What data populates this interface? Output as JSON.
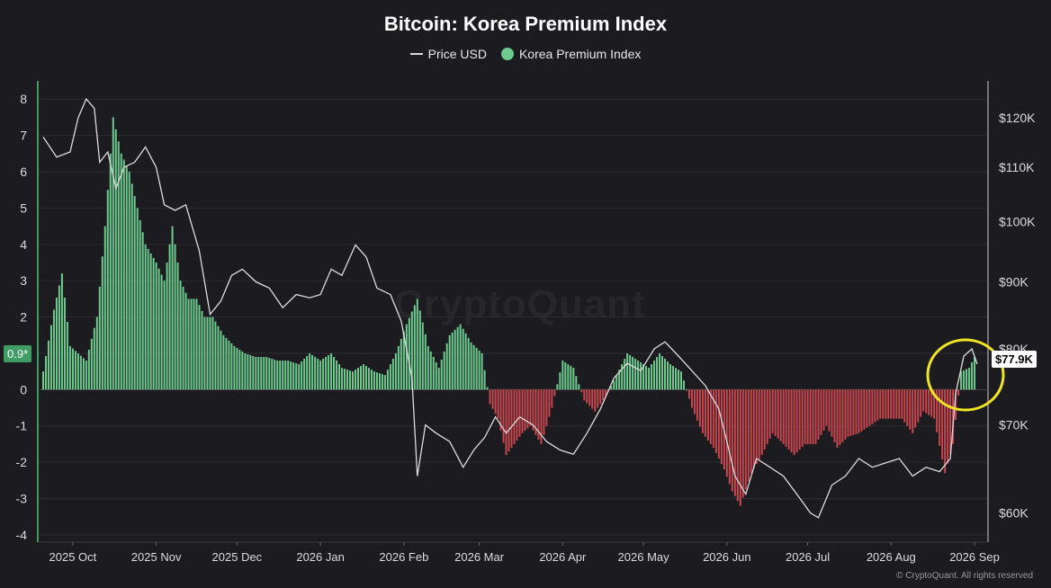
{
  "chart_data": {
    "type": "bar",
    "title": "Bitcoin: Korea Premium Index",
    "legend": [
      "Price USD",
      "Korea Premium Index"
    ],
    "legend_placement": "top-center",
    "grid": true,
    "x_tick_labels": [
      "2025 Oct",
      "2025 Nov",
      "2025 Dec",
      "2026 Jan",
      "2026 Feb",
      "2026 Mar",
      "2026 Apr",
      "2026 May",
      "2026 Jun",
      "2026 Jul",
      "2026 Aug",
      "2026 Sep"
    ],
    "y_left_ticks": [
      8,
      7,
      6,
      5,
      4,
      3,
      2,
      1,
      0,
      -1,
      -2,
      -3,
      -4
    ],
    "y_left_range": [
      -4.2,
      8.5
    ],
    "y_right_ticks": [
      "$120K",
      "$110K",
      "$100K",
      "$90K",
      "$80K",
      "$70K",
      "$60K"
    ],
    "y_right_values": [
      120000,
      110000,
      100000,
      90000,
      80000,
      70000,
      60000
    ],
    "y_right_range": [
      57000,
      128000
    ],
    "y_right_scale": "log",
    "last_premium_label": "0.9*",
    "last_price_label": "$77.9K",
    "premium_series": {
      "name": "Korea Premium Index",
      "positive_color": "#6ecb8e",
      "negative_color": "#c9474e",
      "points": [
        [
          "2025-09-20",
          0.5
        ],
        [
          "2025-09-24",
          2.2
        ],
        [
          "2025-09-27",
          3.2
        ],
        [
          "2025-09-30",
          1.2
        ],
        [
          "2025-10-03",
          1.0
        ],
        [
          "2025-10-06",
          0.8
        ],
        [
          "2025-10-10",
          2.0
        ],
        [
          "2025-10-13",
          4.5
        ],
        [
          "2025-10-16",
          7.5
        ],
        [
          "2025-10-19",
          6.5
        ],
        [
          "2025-10-22",
          6.0
        ],
        [
          "2025-10-25",
          5.0
        ],
        [
          "2025-10-28",
          4.0
        ],
        [
          "2025-11-01",
          3.5
        ],
        [
          "2025-11-04",
          3.0
        ],
        [
          "2025-11-07",
          4.5
        ],
        [
          "2025-11-10",
          3.0
        ],
        [
          "2025-11-13",
          2.5
        ],
        [
          "2025-11-16",
          2.5
        ],
        [
          "2025-11-19",
          2.0
        ],
        [
          "2025-11-22",
          2.0
        ],
        [
          "2025-11-26",
          1.5
        ],
        [
          "2025-11-30",
          1.2
        ],
        [
          "2025-12-04",
          1.0
        ],
        [
          "2025-12-08",
          0.9
        ],
        [
          "2025-12-12",
          0.9
        ],
        [
          "2025-12-16",
          0.8
        ],
        [
          "2025-12-20",
          0.8
        ],
        [
          "2025-12-24",
          0.7
        ],
        [
          "2025-12-28",
          1.0
        ],
        [
          "2026-01-01",
          0.8
        ],
        [
          "2026-01-05",
          1.0
        ],
        [
          "2026-01-09",
          0.6
        ],
        [
          "2026-01-13",
          0.5
        ],
        [
          "2026-01-17",
          0.7
        ],
        [
          "2026-01-21",
          0.5
        ],
        [
          "2026-01-25",
          0.4
        ],
        [
          "2026-01-29",
          1.0
        ],
        [
          "2026-02-02",
          1.8
        ],
        [
          "2026-02-06",
          2.5
        ],
        [
          "2026-02-10",
          1.2
        ],
        [
          "2026-02-14",
          0.6
        ],
        [
          "2026-02-18",
          1.5
        ],
        [
          "2026-02-22",
          1.8
        ],
        [
          "2026-02-26",
          1.3
        ],
        [
          "2026-03-02",
          1.0
        ],
        [
          "2026-03-05",
          -0.4
        ],
        [
          "2026-03-08",
          -0.8
        ],
        [
          "2026-03-11",
          -1.8
        ],
        [
          "2026-03-14",
          -1.5
        ],
        [
          "2026-03-17",
          -1.2
        ],
        [
          "2026-03-20",
          -1.0
        ],
        [
          "2026-03-24",
          -1.5
        ],
        [
          "2026-03-28",
          -0.5
        ],
        [
          "2026-04-01",
          0.8
        ],
        [
          "2026-04-05",
          0.6
        ],
        [
          "2026-04-09",
          -0.3
        ],
        [
          "2026-04-13",
          -0.6
        ],
        [
          "2026-04-17",
          -0.2
        ],
        [
          "2026-04-21",
          0.4
        ],
        [
          "2026-04-25",
          1.0
        ],
        [
          "2026-04-29",
          0.8
        ],
        [
          "2026-05-03",
          0.6
        ],
        [
          "2026-05-07",
          1.0
        ],
        [
          "2026-05-11",
          0.7
        ],
        [
          "2026-05-15",
          0.5
        ],
        [
          "2026-05-19",
          -0.5
        ],
        [
          "2026-05-23",
          -1.2
        ],
        [
          "2026-05-27",
          -1.6
        ],
        [
          "2026-05-31",
          -2.2
        ],
        [
          "2026-06-03",
          -2.8
        ],
        [
          "2026-06-06",
          -3.2
        ],
        [
          "2026-06-10",
          -2.3
        ],
        [
          "2026-06-14",
          -1.8
        ],
        [
          "2026-06-18",
          -1.2
        ],
        [
          "2026-06-22",
          -1.5
        ],
        [
          "2026-06-26",
          -1.8
        ],
        [
          "2026-06-30",
          -1.5
        ],
        [
          "2026-07-04",
          -1.5
        ],
        [
          "2026-07-08",
          -1.0
        ],
        [
          "2026-07-12",
          -1.6
        ],
        [
          "2026-07-16",
          -1.3
        ],
        [
          "2026-07-20",
          -1.2
        ],
        [
          "2026-07-24",
          -1.0
        ],
        [
          "2026-07-28",
          -0.8
        ],
        [
          "2026-08-01",
          -0.8
        ],
        [
          "2026-08-05",
          -0.8
        ],
        [
          "2026-08-09",
          -1.2
        ],
        [
          "2026-08-13",
          -0.6
        ],
        [
          "2026-08-17",
          -0.8
        ],
        [
          "2026-08-21",
          -2.3
        ],
        [
          "2026-08-24",
          -1.5
        ],
        [
          "2026-08-27",
          0.5
        ],
        [
          "2026-08-30",
          0.6
        ],
        [
          "2026-09-01",
          0.9
        ]
      ]
    },
    "price_series": {
      "name": "Price USD",
      "color": "#dddddd",
      "points": [
        [
          "2025-09-20",
          116000
        ],
        [
          "2025-09-25",
          112000
        ],
        [
          "2025-09-30",
          113000
        ],
        [
          "2025-10-03",
          120000
        ],
        [
          "2025-10-06",
          124000
        ],
        [
          "2025-10-09",
          122000
        ],
        [
          "2025-10-11",
          111000
        ],
        [
          "2025-10-14",
          113000
        ],
        [
          "2025-10-17",
          106000
        ],
        [
          "2025-10-20",
          110000
        ],
        [
          "2025-10-24",
          111000
        ],
        [
          "2025-10-28",
          114000
        ],
        [
          "2025-11-01",
          110000
        ],
        [
          "2025-11-04",
          103000
        ],
        [
          "2025-11-08",
          102000
        ],
        [
          "2025-11-12",
          103000
        ],
        [
          "2025-11-17",
          95000
        ],
        [
          "2025-11-21",
          85000
        ],
        [
          "2025-11-25",
          87000
        ],
        [
          "2025-11-29",
          91000
        ],
        [
          "2025-12-03",
          92000
        ],
        [
          "2025-12-08",
          90000
        ],
        [
          "2025-12-13",
          89000
        ],
        [
          "2025-12-18",
          86000
        ],
        [
          "2025-12-23",
          88000
        ],
        [
          "2025-12-28",
          87500
        ],
        [
          "2026-01-01",
          88000
        ],
        [
          "2026-01-05",
          92000
        ],
        [
          "2026-01-09",
          91000
        ],
        [
          "2026-01-14",
          96000
        ],
        [
          "2026-01-18",
          94000
        ],
        [
          "2026-01-22",
          89000
        ],
        [
          "2026-01-27",
          88000
        ],
        [
          "2026-01-31",
          84000
        ],
        [
          "2026-02-04",
          76000
        ],
        [
          "2026-02-06",
          64000
        ],
        [
          "2026-02-09",
          70000
        ],
        [
          "2026-02-13",
          69000
        ],
        [
          "2026-02-18",
          68000
        ],
        [
          "2026-02-23",
          65000
        ],
        [
          "2026-02-27",
          67000
        ],
        [
          "2026-03-03",
          68500
        ],
        [
          "2026-03-07",
          71000
        ],
        [
          "2026-03-11",
          69000
        ],
        [
          "2026-03-16",
          71000
        ],
        [
          "2026-03-21",
          70000
        ],
        [
          "2026-03-26",
          68000
        ],
        [
          "2026-03-31",
          67000
        ],
        [
          "2026-04-05",
          66500
        ],
        [
          "2026-04-10",
          69000
        ],
        [
          "2026-04-15",
          72000
        ],
        [
          "2026-04-20",
          76000
        ],
        [
          "2026-04-25",
          78000
        ],
        [
          "2026-04-30",
          77000
        ],
        [
          "2026-05-05",
          80000
        ],
        [
          "2026-05-09",
          81000
        ],
        [
          "2026-05-14",
          79000
        ],
        [
          "2026-05-19",
          77000
        ],
        [
          "2026-05-24",
          75000
        ],
        [
          "2026-05-29",
          72000
        ],
        [
          "2026-06-01",
          68000
        ],
        [
          "2026-06-04",
          64000
        ],
        [
          "2026-06-08",
          62000
        ],
        [
          "2026-06-12",
          66000
        ],
        [
          "2026-06-17",
          65000
        ],
        [
          "2026-06-22",
          64000
        ],
        [
          "2026-06-27",
          62000
        ],
        [
          "2026-07-02",
          60000
        ],
        [
          "2026-07-05",
          59500
        ],
        [
          "2026-07-10",
          63000
        ],
        [
          "2026-07-15",
          64000
        ],
        [
          "2026-07-20",
          66000
        ],
        [
          "2026-07-25",
          65000
        ],
        [
          "2026-07-30",
          65500
        ],
        [
          "2026-08-04",
          66000
        ],
        [
          "2026-08-09",
          64000
        ],
        [
          "2026-08-14",
          65000
        ],
        [
          "2026-08-19",
          64500
        ],
        [
          "2026-08-23",
          66000
        ],
        [
          "2026-08-25",
          74000
        ],
        [
          "2026-08-28",
          79000
        ],
        [
          "2026-08-31",
          80000
        ],
        [
          "2026-09-02",
          77900
        ]
      ]
    }
  },
  "watermark": "CryptoQuant",
  "copyright": "© CryptoQuant. All rights reserved",
  "highlight_color": "#f0e523"
}
